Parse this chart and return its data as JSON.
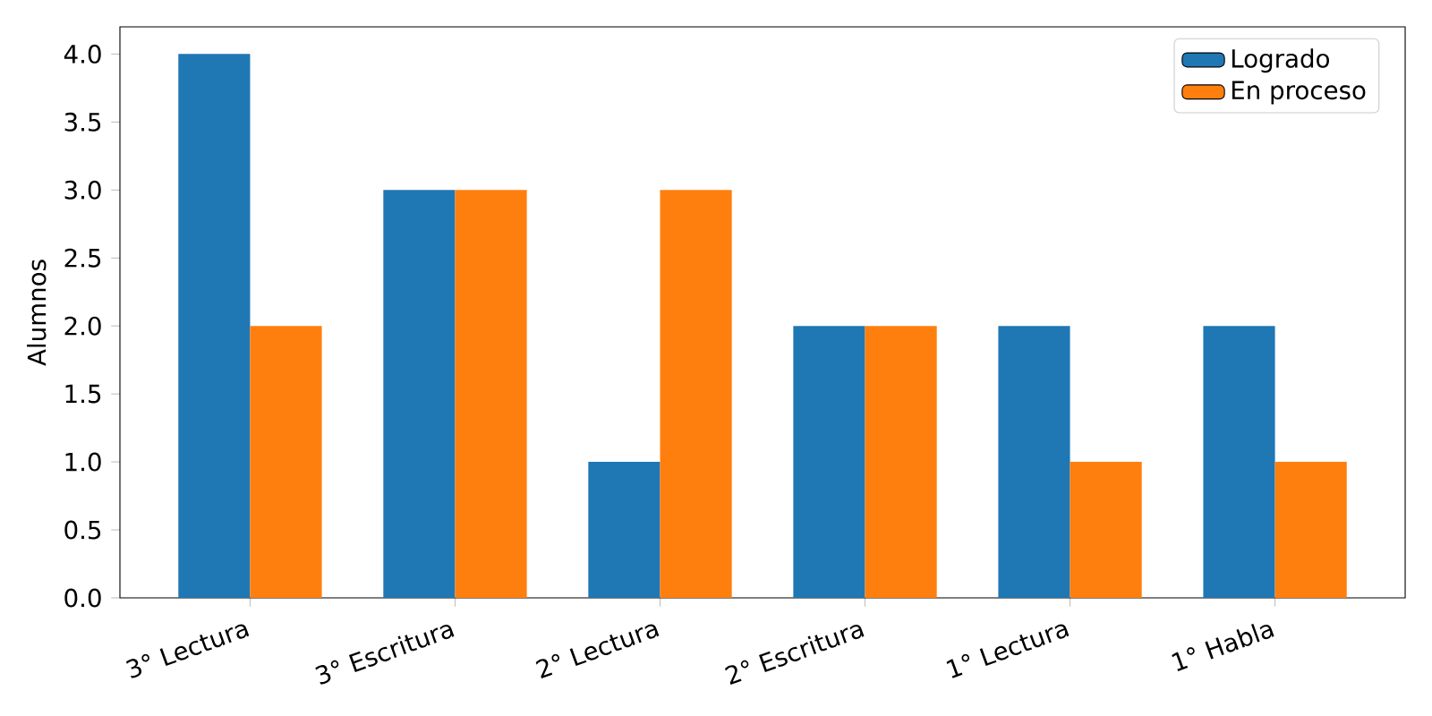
{
  "chart_data": {
    "type": "bar",
    "ylabel": "Alumnos",
    "categories": [
      "3° Lectura",
      "3° Escritura",
      "2° Lectura",
      "2° Escritura",
      "1° Lectura",
      "1° Habla"
    ],
    "series": [
      {
        "name": "Logrado",
        "color": "#1f77b4",
        "values": [
          4,
          3,
          1,
          2,
          2,
          2
        ]
      },
      {
        "name": "En proceso",
        "color": "#ff7f0e",
        "values": [
          2,
          3,
          3,
          2,
          1,
          1
        ]
      }
    ],
    "ylim": [
      0,
      4.2
    ],
    "yticks": [
      {
        "value": 0,
        "label": "0.0"
      },
      {
        "value": 0.5,
        "label": "0.5"
      },
      {
        "value": 1,
        "label": "1.0"
      },
      {
        "value": 1.5,
        "label": "1.5"
      },
      {
        "value": 2,
        "label": "2.0"
      },
      {
        "value": 2.5,
        "label": "2.5"
      },
      {
        "value": 3,
        "label": "3.0"
      },
      {
        "value": 3.5,
        "label": "3.5"
      },
      {
        "value": 4,
        "label": "4.0"
      }
    ],
    "grid": false,
    "legend": "top right"
  }
}
